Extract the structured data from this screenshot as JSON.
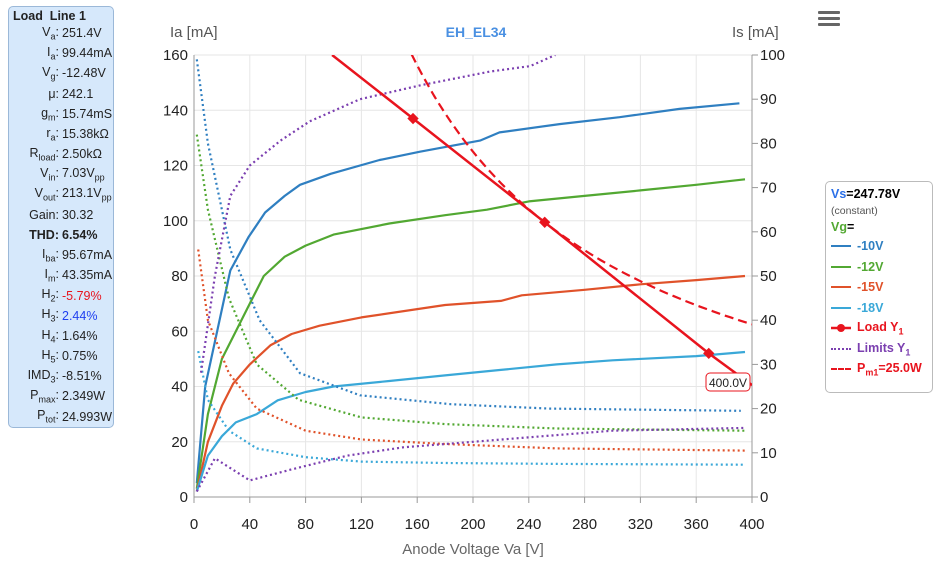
{
  "info": {
    "title": "Load  Line 1",
    "rows": [
      {
        "k": "V",
        "sub": "a",
        "v": "251.4V"
      },
      {
        "k": "I",
        "sub": "a",
        "v": "99.44mA"
      },
      {
        "k": "V",
        "sub": "g",
        "v": "-12.48V"
      },
      {
        "k": "μ",
        "sub": "",
        "v": "242.1"
      },
      {
        "k": "g",
        "sub": "m",
        "v": "15.74mS"
      },
      {
        "k": "r",
        "sub": "a",
        "v": "15.38kΩ"
      },
      {
        "k": "R",
        "sub": "load",
        "v": "2.50kΩ"
      },
      {
        "k": "V",
        "sub": "in",
        "v": "7.03V",
        "vsub": "pp"
      },
      {
        "k": "V",
        "sub": "out",
        "v": "213.1V",
        "vsub": "pp"
      },
      {
        "k": "Gain",
        "sub": "",
        "v": "30.32"
      },
      {
        "k": "THD",
        "sub": "",
        "v": "6.54%",
        "bold": true
      },
      {
        "k": "I",
        "sub": "ba",
        "v": "95.67mA"
      },
      {
        "k": "I",
        "sub": "m",
        "v": "43.35mA"
      },
      {
        "k": "H",
        "sub": "2",
        "v": "-5.79%",
        "color": "#e8141e"
      },
      {
        "k": "H",
        "sub": "3",
        "v": "2.44%",
        "color": "#1f3ff0"
      },
      {
        "k": "H",
        "sub": "4",
        "v": "1.64%"
      },
      {
        "k": "H",
        "sub": "5",
        "v": "0.75%"
      },
      {
        "k": "IMD",
        "sub": "3",
        "v": "-8.51%"
      },
      {
        "k": "P",
        "sub": "max",
        "v": "2.349W"
      },
      {
        "k": "P",
        "sub": "tot",
        "v": "24.993W"
      }
    ]
  },
  "legend": {
    "vs_label": "Vs",
    "vs_value": "=247.78V",
    "constant": "(constant)",
    "vg_label": "Vg",
    "vg_eq": "="
  },
  "chart_data": {
    "type": "line",
    "title": "EH_EL34",
    "xlabel": "Anode Voltage Va [V]",
    "ylabel": "Ia [mA]",
    "y2label": "Is [mA]",
    "xlim": [
      0,
      400
    ],
    "ylim": [
      0,
      160
    ],
    "y2lim": [
      0,
      100
    ],
    "xticks": [
      "0",
      "40",
      "80",
      "120",
      "160",
      "200",
      "240",
      "280",
      "320",
      "360",
      "400"
    ],
    "yticks": [
      "0",
      "20",
      "40",
      "60",
      "80",
      "100",
      "120",
      "140",
      "160"
    ],
    "y2ticks": [
      "0",
      "10",
      "20",
      "30",
      "40",
      "50",
      "60",
      "70",
      "80",
      "90",
      "100"
    ],
    "series": [
      {
        "name": "-10V",
        "color": "#2f7fc1",
        "style": "solid",
        "axis": "left",
        "points": [
          [
            2,
            5
          ],
          [
            8,
            40
          ],
          [
            26,
            82
          ],
          [
            39,
            94
          ],
          [
            51,
            103
          ],
          [
            65,
            109
          ],
          [
            76,
            113
          ],
          [
            98,
            117
          ],
          [
            133,
            122
          ],
          [
            162,
            125
          ],
          [
            205,
            129
          ],
          [
            219,
            132
          ],
          [
            262,
            135
          ],
          [
            305,
            137.5
          ],
          [
            348,
            140.5
          ],
          [
            391,
            142.5
          ]
        ]
      },
      {
        "name": "-12V",
        "color": "#52a832",
        "style": "solid",
        "axis": "left",
        "points": [
          [
            2,
            3
          ],
          [
            10,
            30
          ],
          [
            20,
            50
          ],
          [
            28,
            58
          ],
          [
            38,
            68
          ],
          [
            50,
            80
          ],
          [
            65,
            87
          ],
          [
            80,
            91
          ],
          [
            100,
            95
          ],
          [
            140,
            99
          ],
          [
            180,
            102
          ],
          [
            210,
            104
          ],
          [
            240,
            107
          ],
          [
            280,
            109
          ],
          [
            320,
            111
          ],
          [
            360,
            113
          ],
          [
            395,
            115
          ]
        ]
      },
      {
        "name": "-15V",
        "color": "#e0522a",
        "style": "solid",
        "axis": "left",
        "points": [
          [
            2,
            2
          ],
          [
            10,
            20
          ],
          [
            20,
            33
          ],
          [
            28,
            41
          ],
          [
            40,
            48
          ],
          [
            55,
            55
          ],
          [
            70,
            59
          ],
          [
            90,
            62
          ],
          [
            120,
            65
          ],
          [
            160,
            68
          ],
          [
            180,
            69.5
          ],
          [
            220,
            71
          ],
          [
            235,
            73
          ],
          [
            280,
            75
          ],
          [
            320,
            77
          ],
          [
            360,
            78.5
          ],
          [
            395,
            80
          ]
        ]
      },
      {
        "name": "-18V",
        "color": "#3aa8d8",
        "style": "solid",
        "axis": "left",
        "points": [
          [
            2,
            2
          ],
          [
            10,
            15
          ],
          [
            20,
            22
          ],
          [
            30,
            27
          ],
          [
            45,
            30
          ],
          [
            60,
            35
          ],
          [
            80,
            38
          ],
          [
            100,
            40
          ],
          [
            140,
            42
          ],
          [
            180,
            44
          ],
          [
            220,
            46
          ],
          [
            260,
            48
          ],
          [
            300,
            49.5
          ],
          [
            360,
            51
          ],
          [
            395,
            52.5
          ]
        ]
      },
      {
        "name": "Is -10V",
        "color": "#2f7fc1",
        "style": "dot",
        "axis": "right",
        "points": [
          [
            2,
            99
          ],
          [
            10,
            80
          ],
          [
            26,
            56
          ],
          [
            47,
            40
          ],
          [
            76,
            28
          ],
          [
            119,
            23
          ],
          [
            184,
            21
          ],
          [
            255,
            20
          ],
          [
            392,
            19.5
          ]
        ]
      },
      {
        "name": "Is -12V",
        "color": "#52a832",
        "style": "dot",
        "axis": "right",
        "points": [
          [
            2,
            82
          ],
          [
            10,
            65
          ],
          [
            25,
            45
          ],
          [
            45,
            30
          ],
          [
            75,
            22
          ],
          [
            120,
            18
          ],
          [
            180,
            16.5
          ],
          [
            260,
            15.5
          ],
          [
            395,
            15
          ]
        ]
      },
      {
        "name": "Is -15V",
        "color": "#e0522a",
        "style": "dot",
        "axis": "right",
        "points": [
          [
            3,
            56
          ],
          [
            10,
            40
          ],
          [
            25,
            28
          ],
          [
            45,
            20
          ],
          [
            80,
            15
          ],
          [
            120,
            13
          ],
          [
            180,
            12
          ],
          [
            260,
            11
          ],
          [
            395,
            10.5
          ]
        ]
      },
      {
        "name": "Is -18V",
        "color": "#3aa8d8",
        "style": "dot",
        "axis": "right",
        "points": [
          [
            3,
            33
          ],
          [
            10,
            22
          ],
          [
            25,
            15
          ],
          [
            45,
            11
          ],
          [
            80,
            9
          ],
          [
            120,
            8
          ],
          [
            180,
            7.7
          ],
          [
            260,
            7.5
          ],
          [
            395,
            7.3
          ]
        ]
      },
      {
        "name": "Limits Y1 (lower)",
        "color": "#7b3fb0",
        "style": "dot",
        "axis": "left",
        "points": [
          [
            2,
            2
          ],
          [
            15,
            14
          ],
          [
            40,
            6
          ],
          [
            70,
            10
          ],
          [
            110,
            15
          ],
          [
            150,
            18
          ],
          [
            200,
            20
          ],
          [
            250,
            22
          ],
          [
            300,
            24
          ],
          [
            395,
            25
          ]
        ]
      },
      {
        "name": "Limits Y1",
        "color": "#7b3fb0",
        "style": "dot",
        "axis": "left",
        "points": [
          [
            5,
            45
          ],
          [
            15,
            80
          ],
          [
            26,
            109
          ],
          [
            40,
            120
          ],
          [
            62,
            129
          ],
          [
            83,
            136
          ],
          [
            119,
            144
          ],
          [
            162,
            149
          ],
          [
            212,
            154
          ],
          [
            241,
            156
          ],
          [
            259,
            160
          ]
        ]
      },
      {
        "name": "Load Y1",
        "color": "#e8141e",
        "style": "solid",
        "axis": "left",
        "marker": true,
        "points": [
          [
            99,
            160
          ],
          [
            157,
            137
          ],
          [
            251.4,
            99.44
          ],
          [
            369,
            52
          ],
          [
            400,
            40.5
          ]
        ],
        "markers": [
          [
            157,
            137
          ],
          [
            251.4,
            99.44
          ],
          [
            369,
            52
          ]
        ]
      },
      {
        "name": "Pm1=25.0W",
        "color": "#e8141e",
        "style": "dash",
        "axis": "left",
        "power_w": 25,
        "xrange": [
          156,
          400
        ]
      }
    ],
    "annotation": "400.0V",
    "legend_items": [
      {
        "label": "-10V",
        "color": "#2f7fc1",
        "style": "solid"
      },
      {
        "label": "-12V",
        "color": "#52a832",
        "style": "solid"
      },
      {
        "label": "-15V",
        "color": "#e0522a",
        "style": "solid"
      },
      {
        "label": "-18V",
        "color": "#3aa8d8",
        "style": "solid"
      },
      {
        "label": "Load Y",
        "sub": "1",
        "color": "#e8141e",
        "style": "marker"
      },
      {
        "label": "Limits Y",
        "sub": "1",
        "color": "#7b3fb0",
        "style": "dot"
      },
      {
        "label": "P",
        "sub": "m1",
        "after": "=25.0W",
        "color": "#e8141e",
        "style": "dash"
      }
    ]
  }
}
